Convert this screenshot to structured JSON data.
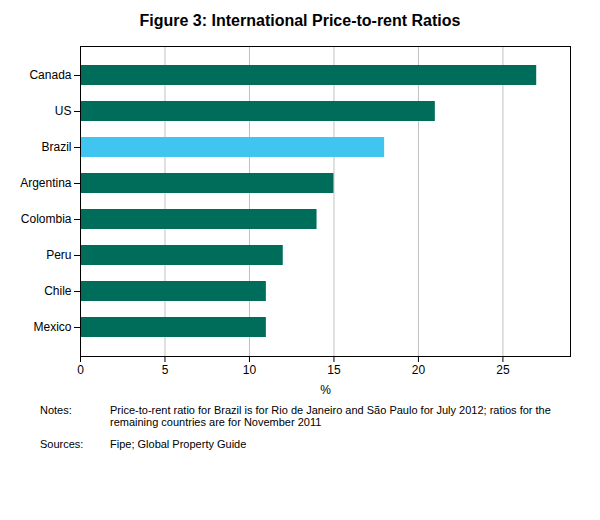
{
  "chart_data": {
    "type": "bar",
    "orientation": "horizontal",
    "title": "Figure 3: International Price-to-rent Ratios",
    "categories": [
      "Mexico",
      "Chile",
      "Peru",
      "Colombia",
      "Argentina",
      "Brazil",
      "US",
      "Canada"
    ],
    "values": [
      11.0,
      11.0,
      12.0,
      14.0,
      15.0,
      18.0,
      21.0,
      27.0
    ],
    "colors": [
      "#006d5b",
      "#006d5b",
      "#006d5b",
      "#006d5b",
      "#006d5b",
      "#40c4f0",
      "#006d5b",
      "#006d5b"
    ],
    "xlabel": "%",
    "xlim": [
      0,
      29
    ],
    "xticks": [
      0,
      5,
      10,
      15,
      20,
      25
    ],
    "grid": true,
    "annotations": [
      {
        "label": "Notes:",
        "text": "Price-to-rent ratio for Brazil is for Rio de Janeiro and São Paulo for July 2012; ratios for the\nremaining countries are for November 2011"
      },
      {
        "label": "Sources:",
        "text": "Fipe; Global Property Guide"
      }
    ]
  }
}
